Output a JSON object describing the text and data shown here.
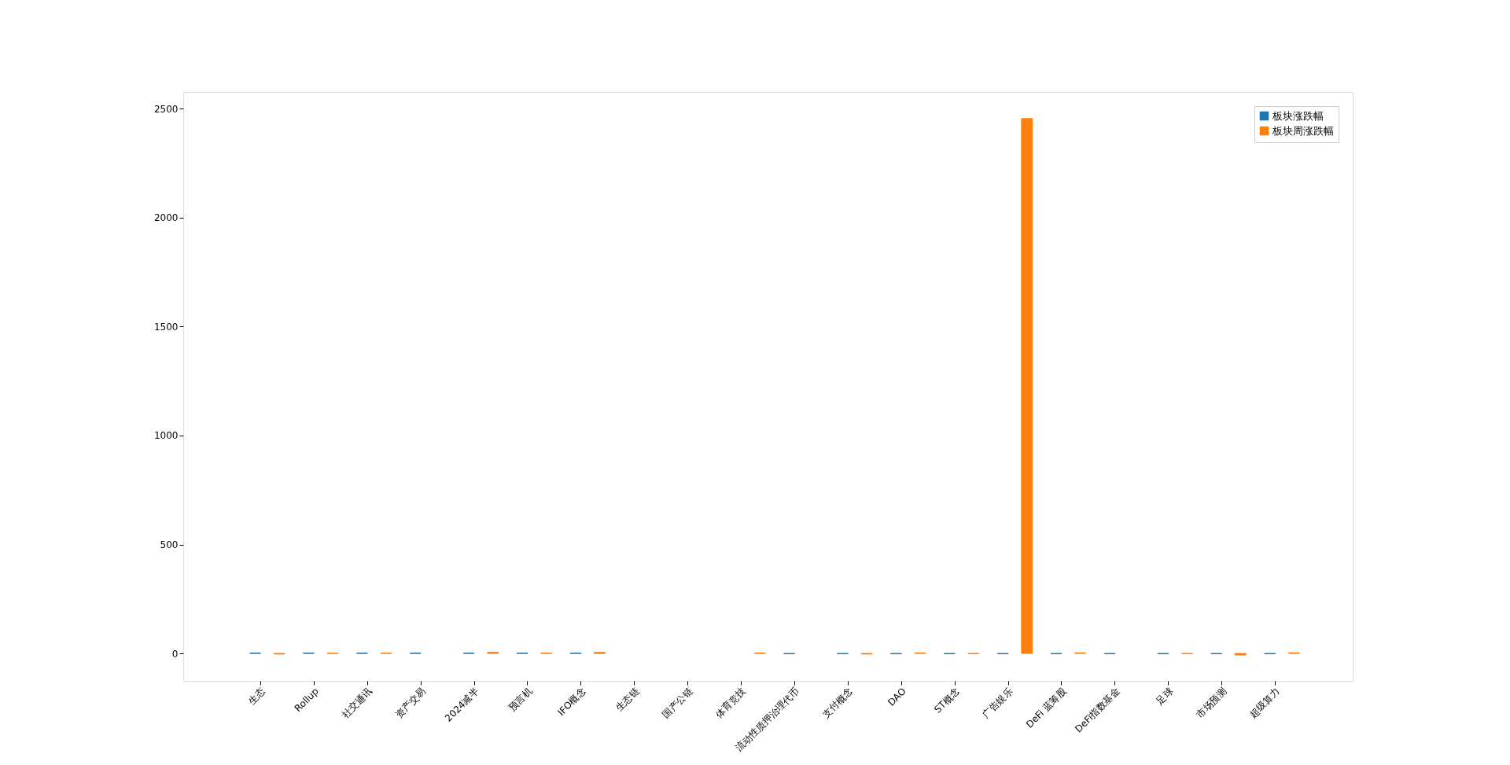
{
  "chart_data": {
    "type": "bar",
    "categories": [
      "生态",
      "Rollup",
      "社交通讯",
      "资产交易",
      "2024减半",
      "预言机",
      "IFO概念",
      "生态链",
      "国产公链",
      "体育竞技",
      "流动性质押治理代币",
      "支付概念",
      "DAO",
      "ST概念",
      "广告娱乐",
      "DeFi 蓝筹股",
      "DeFi指数基金",
      "足球",
      "市场预测",
      "超级算力"
    ],
    "series": [
      {
        "name": "板块涨跌幅",
        "color": "#1f77b4",
        "values": [
          1,
          1,
          1,
          1,
          1,
          1,
          1,
          null,
          null,
          null,
          -2,
          -2,
          -2,
          -2,
          -2,
          -2,
          -2,
          -2,
          -2,
          -2
        ]
      },
      {
        "name": "板块周涨跌幅",
        "color": "#ff7f0e",
        "values": [
          -3,
          1,
          1,
          null,
          5,
          1,
          5,
          null,
          null,
          2,
          null,
          -3,
          2,
          -2,
          2455,
          2,
          null,
          -2,
          -7,
          3
        ]
      }
    ],
    "ylim": [
      -126,
      2577
    ],
    "yticks": [
      0,
      500,
      1000,
      1500,
      2000,
      2500
    ],
    "grid": false,
    "legend": "top right"
  }
}
